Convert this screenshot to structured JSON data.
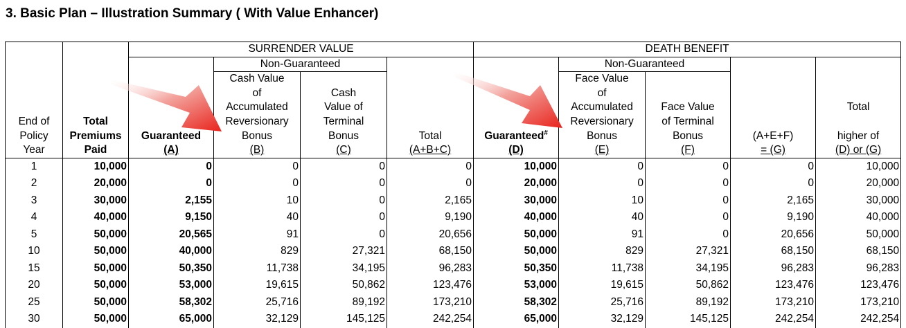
{
  "title": "3. Basic Plan – Illustration Summary ( With Value Enhancer)",
  "headers": {
    "surrender_value": "SURRENDER VALUE",
    "death_benefit": "DEATH BENEFIT",
    "non_guaranteed_sv": "Non-Guaranteed",
    "non_guaranteed_db": "Non-Guaranteed",
    "end_of_policy_year": [
      "End of",
      "Policy",
      "Year"
    ],
    "total_premiums_paid": [
      "Total",
      "Premiums",
      "Paid"
    ],
    "guaranteed_a": [
      "Guaranteed",
      "(A)"
    ],
    "cash_value_reversionary": [
      "Cash Value",
      "of",
      "Accumulated",
      "Reversionary",
      "Bonus",
      "(B)"
    ],
    "cash_value_terminal": [
      "Cash",
      "Value of",
      "Terminal",
      "Bonus",
      "(C)"
    ],
    "total_abc": [
      "Total",
      "(A+B+C)"
    ],
    "guaranteed_d": [
      "Guaranteed",
      "#",
      "(D)"
    ],
    "face_value_reversionary": [
      "Face Value",
      "of",
      "Accumulated",
      "Reversionary",
      "Bonus",
      "(E)"
    ],
    "face_value_terminal": [
      "Face Value",
      "of Terminal",
      "Bonus",
      "(F)"
    ],
    "aef_g": [
      "(A+E+F)",
      "= (G)"
    ],
    "total_higher": [
      "Total",
      "higher of",
      "(D) or (G)"
    ]
  },
  "rows": [
    [
      "1",
      "10,000",
      "0",
      "0",
      "0",
      "0",
      "10,000",
      "0",
      "0",
      "0",
      "10,000"
    ],
    [
      "2",
      "20,000",
      "0",
      "0",
      "0",
      "0",
      "20,000",
      "0",
      "0",
      "0",
      "20,000"
    ],
    [
      "3",
      "30,000",
      "2,155",
      "10",
      "0",
      "2,165",
      "30,000",
      "10",
      "0",
      "2,165",
      "30,000"
    ],
    [
      "4",
      "40,000",
      "9,150",
      "40",
      "0",
      "9,190",
      "40,000",
      "40",
      "0",
      "9,190",
      "40,000"
    ],
    [
      "5",
      "50,000",
      "20,565",
      "91",
      "0",
      "20,656",
      "50,000",
      "91",
      "0",
      "20,656",
      "50,000"
    ],
    [
      "10",
      "50,000",
      "40,000",
      "829",
      "27,321",
      "68,150",
      "50,000",
      "829",
      "27,321",
      "68,150",
      "68,150"
    ],
    [
      "15",
      "50,000",
      "50,350",
      "11,738",
      "34,195",
      "96,283",
      "50,350",
      "11,738",
      "34,195",
      "96,283",
      "96,283"
    ],
    [
      "20",
      "50,000",
      "53,000",
      "19,615",
      "50,862",
      "123,476",
      "53,000",
      "19,615",
      "50,862",
      "123,476",
      "123,476"
    ],
    [
      "25",
      "50,000",
      "58,302",
      "25,716",
      "89,192",
      "173,210",
      "58,302",
      "25,716",
      "89,192",
      "173,210",
      "173,210"
    ],
    [
      "30",
      "50,000",
      "65,000",
      "32,129",
      "145,125",
      "242,254",
      "65,000",
      "32,129",
      "145,125",
      "242,254",
      "242,254"
    ]
  ],
  "colors": {
    "arrow": "#e8231c",
    "arrow_light": "#f6c4c0",
    "border": "#000000"
  }
}
